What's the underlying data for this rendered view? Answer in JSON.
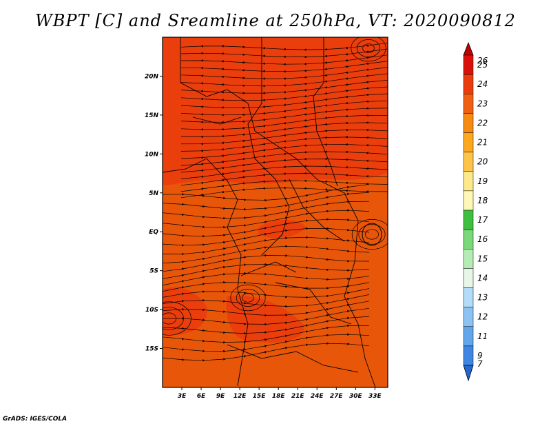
{
  "title": "WBPT [C] and Sreamline at 250hPa, VT: 2020090812",
  "credit": "GrADS: IGES/COLA",
  "map": {
    "lon_range": [
      0,
      35
    ],
    "lat_range": [
      -20,
      25
    ],
    "xticks": [
      {
        "value": 3,
        "label": "3E"
      },
      {
        "value": 6,
        "label": "6E"
      },
      {
        "value": 9,
        "label": "9E"
      },
      {
        "value": 12,
        "label": "12E"
      },
      {
        "value": 15,
        "label": "15E"
      },
      {
        "value": 18,
        "label": "18E"
      },
      {
        "value": 21,
        "label": "21E"
      },
      {
        "value": 24,
        "label": "24E"
      },
      {
        "value": 27,
        "label": "27E"
      },
      {
        "value": 30,
        "label": "30E"
      },
      {
        "value": 33,
        "label": "33E"
      }
    ],
    "yticks": [
      {
        "value": 20,
        "label": "20N"
      },
      {
        "value": 15,
        "label": "15N"
      },
      {
        "value": 10,
        "label": "10N"
      },
      {
        "value": 5,
        "label": "5N"
      },
      {
        "value": 0,
        "label": "EQ"
      },
      {
        "value": -5,
        "label": "5S"
      },
      {
        "value": -10,
        "label": "10S"
      },
      {
        "value": -15,
        "label": "15S"
      }
    ],
    "base_fill": "#e8560a",
    "hot_fill": "#ea3c0c"
  },
  "colorbar": {
    "levels": [
      {
        "label": "26",
        "color": "#c40000"
      },
      {
        "label": "25",
        "color": "#d8120a"
      },
      {
        "label": "24",
        "color": "#ea3c0c"
      },
      {
        "label": "23",
        "color": "#f06012"
      },
      {
        "label": "22",
        "color": "#f78b12"
      },
      {
        "label": "21",
        "color": "#fca81e"
      },
      {
        "label": "20",
        "color": "#fdc44a"
      },
      {
        "label": "19",
        "color": "#fde98a"
      },
      {
        "label": "18",
        "color": "#fdf8b6"
      },
      {
        "label": "17",
        "color": "#3fbf3f"
      },
      {
        "label": "16",
        "color": "#7ad77a"
      },
      {
        "label": "15",
        "color": "#b5ecb5"
      },
      {
        "label": "14",
        "color": "#e7f6e7"
      },
      {
        "label": "13",
        "color": "#b4dcf8"
      },
      {
        "label": "12",
        "color": "#8cc3f3"
      },
      {
        "label": "11",
        "color": "#62a6ec"
      },
      {
        "label": "9",
        "color": "#3e86e2"
      },
      {
        "label": "7",
        "color": "#2466d2"
      }
    ]
  }
}
